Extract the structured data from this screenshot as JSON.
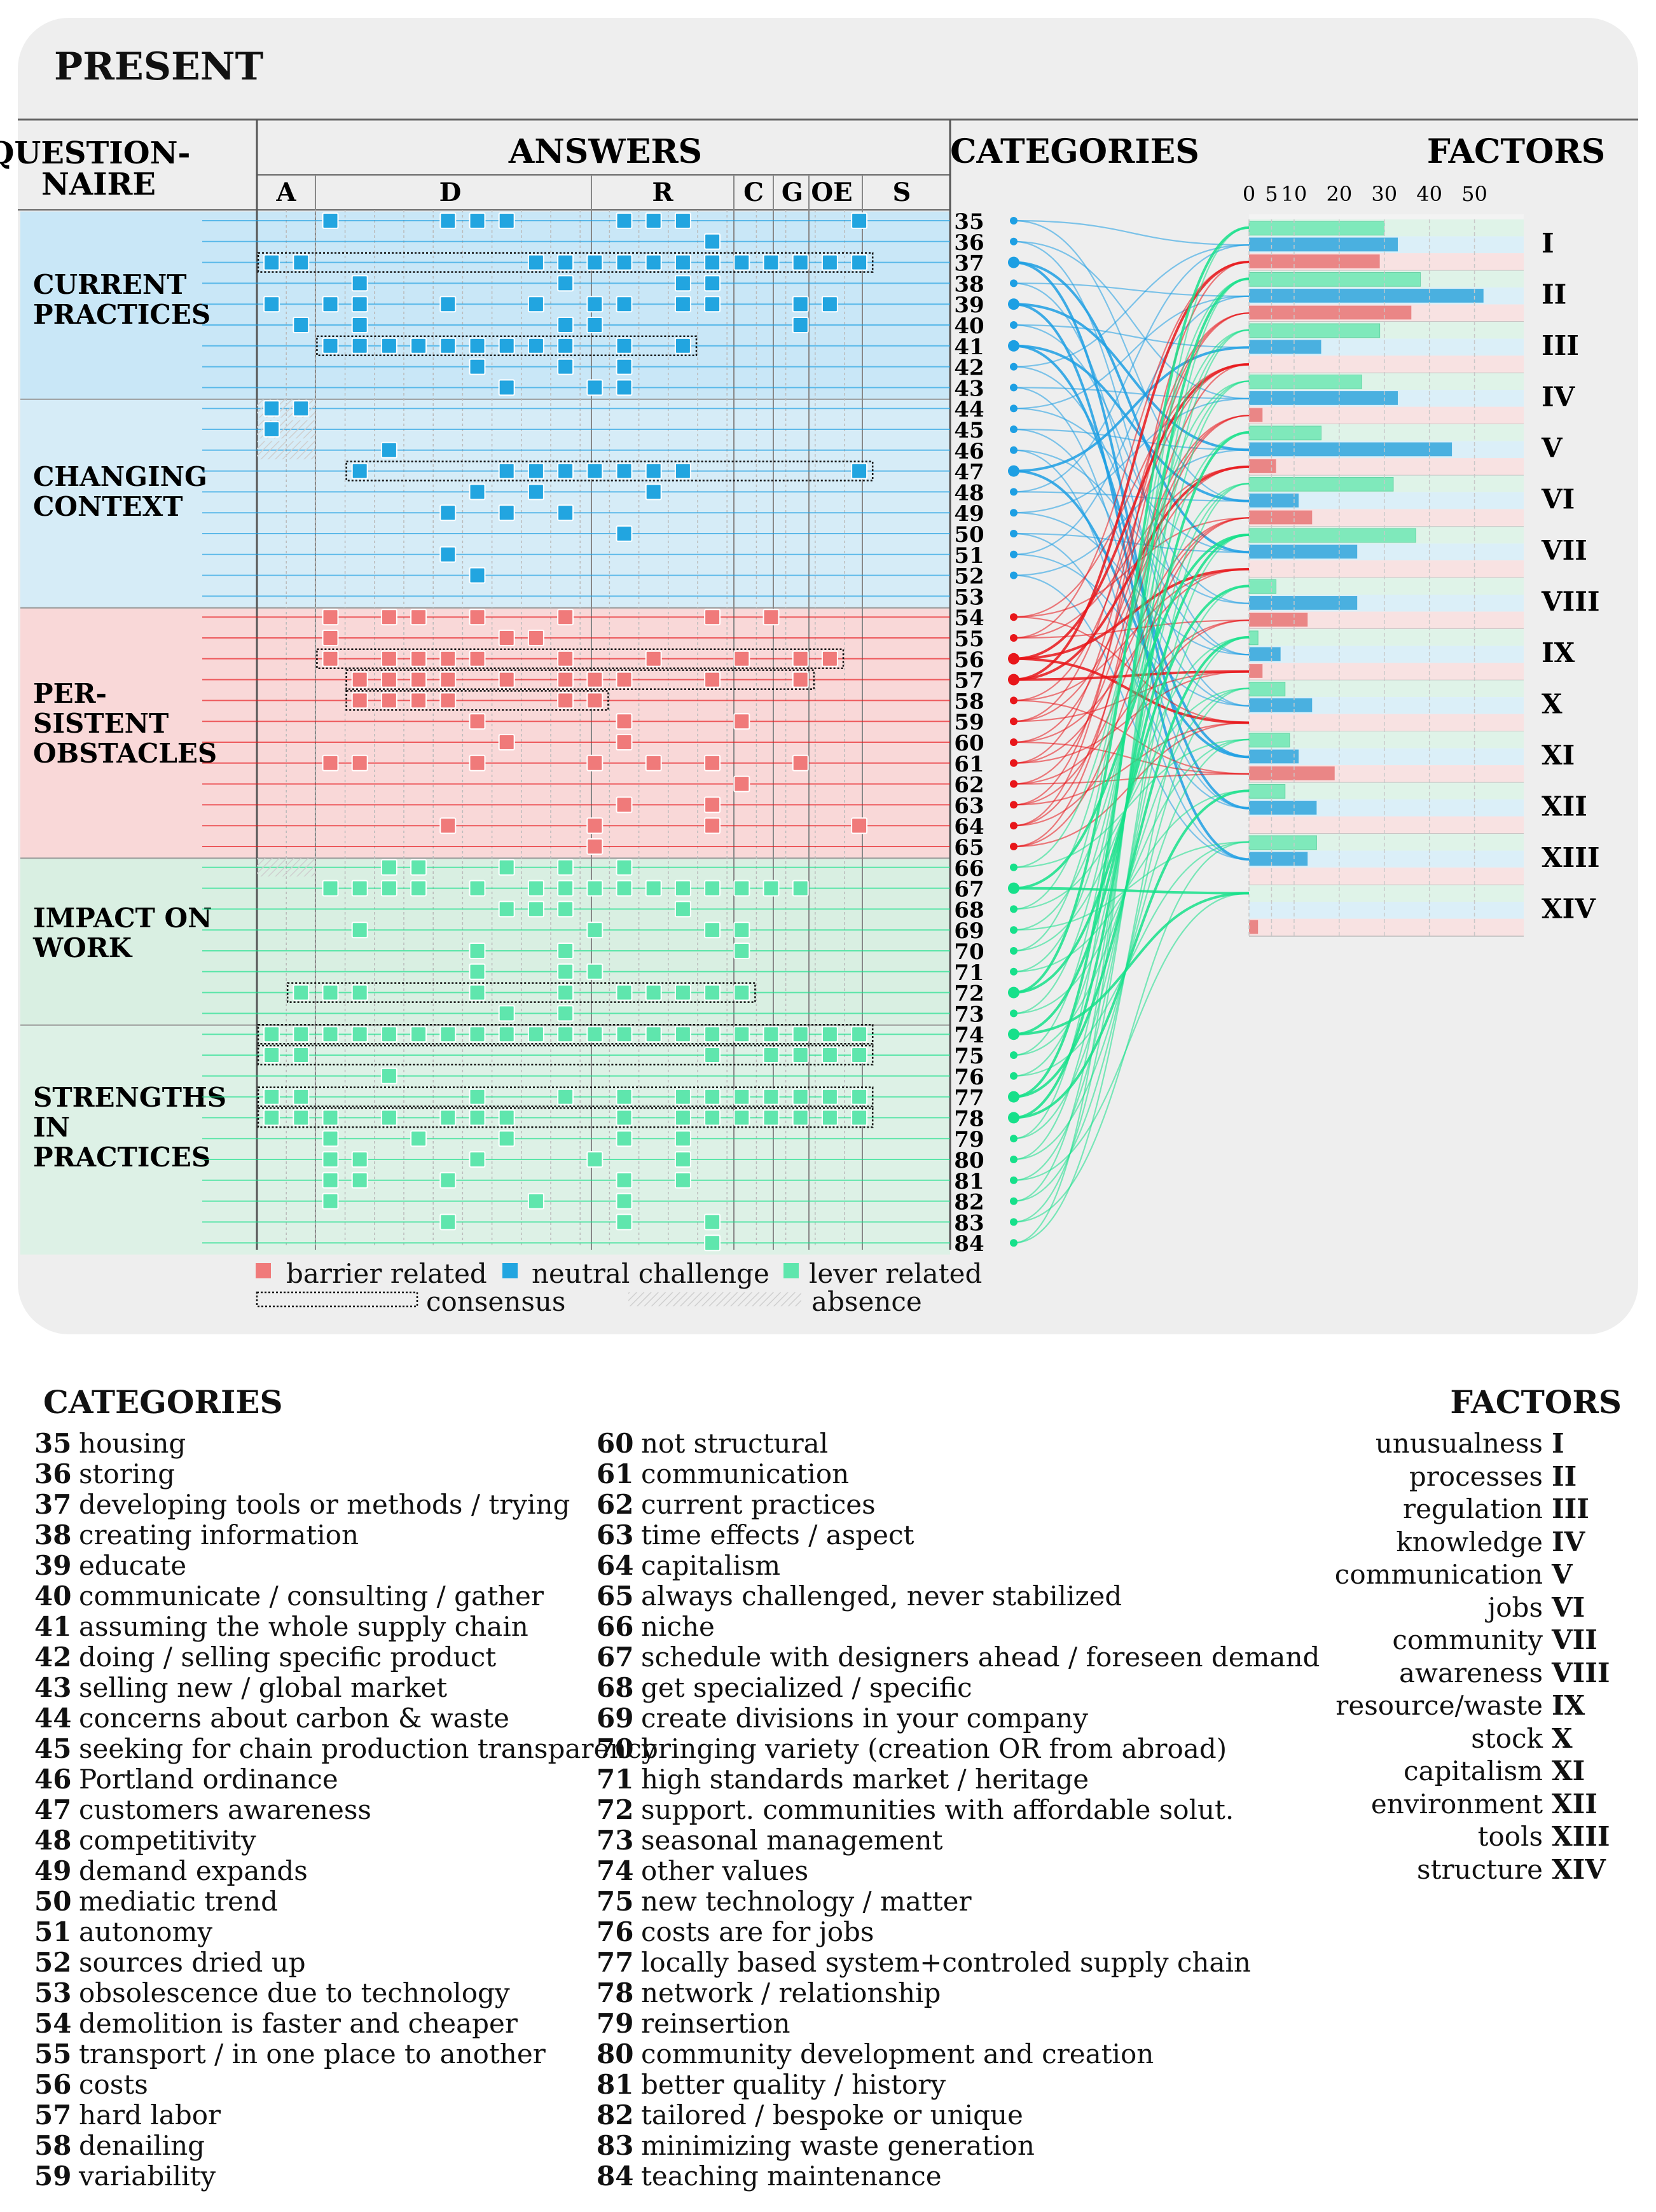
{
  "title": "PRESENT",
  "headers": {
    "questionnaire": "QUESTION-\nNAIRE",
    "answers": "ANSWERS",
    "categories": "CATEGORIES",
    "factors": "FACTORS"
  },
  "answer_groups": [
    "A",
    "D",
    "R",
    "C",
    "G",
    "OE",
    "S"
  ],
  "sections": [
    {
      "label": "CURRENT\nPRACTICES",
      "color": "#c9e7f7"
    },
    {
      "label": "CHANGING\nCONTEXT",
      "color": "#d6ecf7"
    },
    {
      "label": "PER-\nSISTENT\nOBSTACLES",
      "color": "#f9d8d8"
    },
    {
      "label": "IMPACT ON\nWORK",
      "color": "#d9efe2"
    },
    {
      "label": "STRENGTHS\nIN\nPRACTICES",
      "color": "#ddf1e6"
    }
  ],
  "colors": {
    "barrier": "#f07a7a",
    "neutral": "#22a5e0",
    "lever": "#5fe6ad",
    "barrier_line": "#e8161a",
    "neutral_line": "#1d9fe3",
    "lever_line": "#16e08a"
  },
  "legend": {
    "barrier": "barrier related",
    "neutral": "neutral challenge",
    "lever": "lever related",
    "consensus": "consensus",
    "absence": "absence"
  },
  "chart_data": {
    "type": "matrix-with-bar",
    "title": "PRESENT",
    "answer_columns": 21,
    "rows": [
      {
        "id": 35,
        "type": "neutral",
        "cells": [
          3,
          7,
          8,
          9,
          13,
          14,
          15,
          21
        ]
      },
      {
        "id": 36,
        "type": "neutral",
        "cells": [
          16
        ]
      },
      {
        "id": 37,
        "type": "neutral",
        "cells": [
          1,
          2,
          10,
          11,
          12,
          13,
          14,
          15,
          16,
          17,
          18,
          19,
          20,
          21
        ],
        "consensus": true
      },
      {
        "id": 38,
        "type": "neutral",
        "cells": [
          4,
          11,
          15,
          16
        ]
      },
      {
        "id": 39,
        "type": "neutral",
        "cells": [
          1,
          3,
          4,
          7,
          10,
          12,
          13,
          15,
          16,
          19,
          20
        ]
      },
      {
        "id": 40,
        "type": "neutral",
        "cells": [
          2,
          4,
          11,
          12,
          19
        ]
      },
      {
        "id": 41,
        "type": "neutral",
        "cells": [
          3,
          4,
          5,
          6,
          7,
          8,
          9,
          10,
          11,
          13,
          15
        ],
        "consensus": true
      },
      {
        "id": 42,
        "type": "neutral",
        "cells": [
          8,
          11,
          13
        ]
      },
      {
        "id": 43,
        "type": "neutral",
        "cells": [
          9,
          12,
          13
        ]
      },
      {
        "id": 44,
        "type": "neutral",
        "cells": [
          1,
          2
        ],
        "absence": true
      },
      {
        "id": 45,
        "type": "neutral",
        "cells": [
          1
        ],
        "absence": true
      },
      {
        "id": 46,
        "type": "neutral",
        "cells": [
          5
        ],
        "absence": true
      },
      {
        "id": 47,
        "type": "neutral",
        "cells": [
          4,
          9,
          10,
          11,
          12,
          13,
          14,
          15,
          21
        ],
        "consensus": true
      },
      {
        "id": 48,
        "type": "neutral",
        "cells": [
          8,
          10,
          14
        ]
      },
      {
        "id": 49,
        "type": "neutral",
        "cells": [
          7,
          9,
          11
        ]
      },
      {
        "id": 50,
        "type": "neutral",
        "cells": [
          13
        ]
      },
      {
        "id": 51,
        "type": "neutral",
        "cells": [
          7
        ]
      },
      {
        "id": 52,
        "type": "neutral",
        "cells": [
          8
        ]
      },
      {
        "id": 53,
        "type": "neutral",
        "cells": []
      },
      {
        "id": 54,
        "type": "barrier",
        "cells": [
          3,
          5,
          6,
          8,
          11,
          16,
          18
        ]
      },
      {
        "id": 55,
        "type": "barrier",
        "cells": [
          3,
          9,
          10
        ]
      },
      {
        "id": 56,
        "type": "barrier",
        "cells": [
          3,
          5,
          6,
          7,
          8,
          11,
          14,
          17,
          19,
          20
        ],
        "consensus": true
      },
      {
        "id": 57,
        "type": "barrier",
        "cells": [
          4,
          5,
          6,
          7,
          9,
          11,
          12,
          13,
          16,
          19
        ],
        "consensus": true
      },
      {
        "id": 58,
        "type": "barrier",
        "cells": [
          4,
          5,
          6,
          7,
          11,
          12
        ],
        "consensus": true
      },
      {
        "id": 59,
        "type": "barrier",
        "cells": [
          8,
          13,
          17
        ]
      },
      {
        "id": 60,
        "type": "barrier",
        "cells": [
          9,
          13
        ]
      },
      {
        "id": 61,
        "type": "barrier",
        "cells": [
          3,
          4,
          8,
          12,
          14,
          16,
          19
        ]
      },
      {
        "id": 62,
        "type": "barrier",
        "cells": [
          17
        ]
      },
      {
        "id": 63,
        "type": "barrier",
        "cells": [
          13,
          16
        ]
      },
      {
        "id": 64,
        "type": "barrier",
        "cells": [
          7,
          12,
          16,
          21
        ]
      },
      {
        "id": 65,
        "type": "barrier",
        "cells": [
          12
        ]
      },
      {
        "id": 66,
        "type": "lever",
        "cells": [
          5,
          6,
          9,
          11,
          13
        ],
        "absence": true
      },
      {
        "id": 67,
        "type": "lever",
        "cells": [
          3,
          4,
          5,
          6,
          8,
          10,
          11,
          12,
          13,
          14,
          15,
          16,
          17,
          18,
          19
        ]
      },
      {
        "id": 68,
        "type": "lever",
        "cells": [
          9,
          10,
          11,
          15
        ]
      },
      {
        "id": 69,
        "type": "lever",
        "cells": [
          4,
          12,
          16,
          17
        ]
      },
      {
        "id": 70,
        "type": "lever",
        "cells": [
          8,
          11,
          17
        ]
      },
      {
        "id": 71,
        "type": "lever",
        "cells": [
          8,
          11,
          12
        ]
      },
      {
        "id": 72,
        "type": "lever",
        "cells": [
          2,
          3,
          4,
          8,
          11,
          13,
          14,
          15,
          16,
          17
        ],
        "consensus": true
      },
      {
        "id": 73,
        "type": "lever",
        "cells": [
          9,
          11
        ]
      },
      {
        "id": 74,
        "type": "lever",
        "cells": [
          1,
          2,
          3,
          4,
          5,
          6,
          7,
          8,
          9,
          10,
          11,
          12,
          13,
          14,
          15,
          16,
          17,
          18,
          19,
          20,
          21
        ],
        "consensus": true
      },
      {
        "id": 75,
        "type": "lever",
        "cells": [
          1,
          2,
          16,
          18,
          19,
          20,
          21
        ],
        "consensus": true
      },
      {
        "id": 76,
        "type": "lever",
        "cells": [
          5
        ]
      },
      {
        "id": 77,
        "type": "lever",
        "cells": [
          1,
          2,
          8,
          11,
          13,
          15,
          16,
          17,
          18,
          19,
          20,
          21
        ],
        "consensus": true
      },
      {
        "id": 78,
        "type": "lever",
        "cells": [
          1,
          2,
          3,
          5,
          7,
          8,
          9,
          13,
          15,
          16,
          17,
          18,
          19,
          20,
          21
        ],
        "consensus": true
      },
      {
        "id": 79,
        "type": "lever",
        "cells": [
          3,
          6,
          9,
          13,
          15
        ]
      },
      {
        "id": 80,
        "type": "lever",
        "cells": [
          3,
          4,
          8,
          12,
          15
        ]
      },
      {
        "id": 81,
        "type": "lever",
        "cells": [
          3,
          4,
          7,
          13,
          15
        ]
      },
      {
        "id": 82,
        "type": "lever",
        "cells": [
          3,
          10,
          13
        ]
      },
      {
        "id": 83,
        "type": "lever",
        "cells": [
          7,
          13,
          16
        ]
      },
      {
        "id": 84,
        "type": "lever",
        "cells": [
          16
        ]
      }
    ],
    "factor_axis": {
      "ticks": [
        0,
        5,
        10,
        20,
        30,
        40,
        50
      ],
      "range": [
        0,
        55
      ]
    },
    "factors": [
      {
        "id": "I",
        "lever": 30,
        "neutral": 33,
        "barrier": 29
      },
      {
        "id": "II",
        "lever": 38,
        "neutral": 52,
        "barrier": 36
      },
      {
        "id": "III",
        "lever": 29,
        "neutral": 16,
        "barrier": 0
      },
      {
        "id": "IV",
        "lever": 25,
        "neutral": 33,
        "barrier": 3
      },
      {
        "id": "V",
        "lever": 16,
        "neutral": 45,
        "barrier": 6
      },
      {
        "id": "VI",
        "lever": 32,
        "neutral": 11,
        "barrier": 14
      },
      {
        "id": "VII",
        "lever": 37,
        "neutral": 24,
        "barrier": 0
      },
      {
        "id": "VIII",
        "lever": 6,
        "neutral": 24,
        "barrier": 13
      },
      {
        "id": "IX",
        "lever": 2,
        "neutral": 7,
        "barrier": 3
      },
      {
        "id": "X",
        "lever": 8,
        "neutral": 14,
        "barrier": 0
      },
      {
        "id": "XI",
        "lever": 9,
        "neutral": 11,
        "barrier": 19
      },
      {
        "id": "XII",
        "lever": 8,
        "neutral": 15,
        "barrier": 0
      },
      {
        "id": "XIII",
        "lever": 15,
        "neutral": 13,
        "barrier": 0
      },
      {
        "id": "XIV",
        "lever": 0,
        "neutral": 0,
        "barrier": 2
      }
    ]
  },
  "categories_title": "CATEGORIES",
  "categories": [
    {
      "n": "35",
      "label": "housing"
    },
    {
      "n": "36",
      "label": "storing"
    },
    {
      "n": "37",
      "label": "developing tools or methods / trying"
    },
    {
      "n": "38",
      "label": "creating information"
    },
    {
      "n": "39",
      "label": "educate"
    },
    {
      "n": "40",
      "label": "communicate / consulting / gather"
    },
    {
      "n": "41",
      "label": "assuming the whole supply chain"
    },
    {
      "n": "42",
      "label": "doing / selling specific product"
    },
    {
      "n": "43",
      "label": "selling new / global market"
    },
    {
      "n": "44",
      "label": "concerns about carbon & waste"
    },
    {
      "n": "45",
      "label": "seeking for chain production transparency"
    },
    {
      "n": "46",
      "label": "Portland ordinance"
    },
    {
      "n": "47",
      "label": "customers awareness"
    },
    {
      "n": "48",
      "label": "competitivity"
    },
    {
      "n": "49",
      "label": "demand expands"
    },
    {
      "n": "50",
      "label": "mediatic trend"
    },
    {
      "n": "51",
      "label": "autonomy"
    },
    {
      "n": "52",
      "label": "sources dried up"
    },
    {
      "n": "53",
      "label": "obsolescence due to technology"
    },
    {
      "n": "54",
      "label": "demolition is faster and cheaper"
    },
    {
      "n": "55",
      "label": "transport / in one place to another"
    },
    {
      "n": "56",
      "label": "costs"
    },
    {
      "n": "57",
      "label": "hard labor"
    },
    {
      "n": "58",
      "label": "denailing"
    },
    {
      "n": "59",
      "label": "variability"
    },
    {
      "n": "60",
      "label": "not structural"
    },
    {
      "n": "61",
      "label": "communication"
    },
    {
      "n": "62",
      "label": "current practices"
    },
    {
      "n": "63",
      "label": "time effects / aspect"
    },
    {
      "n": "64",
      "label": "capitalism"
    },
    {
      "n": "65",
      "label": "always challenged, never stabilized"
    },
    {
      "n": "66",
      "label": "niche"
    },
    {
      "n": "67",
      "label": "schedule with designers ahead / foreseen demand"
    },
    {
      "n": "68",
      "label": "get specialized / specific"
    },
    {
      "n": "69",
      "label": "create divisions in your company"
    },
    {
      "n": "70",
      "label": "bringing variety (creation OR from abroad)"
    },
    {
      "n": "71",
      "label": "high standards market / heritage"
    },
    {
      "n": "72",
      "label": "support. communities with affordable solut."
    },
    {
      "n": "73",
      "label": "seasonal management"
    },
    {
      "n": "74",
      "label": "other values"
    },
    {
      "n": "75",
      "label": "new technology / matter"
    },
    {
      "n": "76",
      "label": "costs are for jobs"
    },
    {
      "n": "77",
      "label": "locally based system+controled supply chain"
    },
    {
      "n": "78",
      "label": "network / relationship"
    },
    {
      "n": "79",
      "label": "reinsertion"
    },
    {
      "n": "80",
      "label": "community development and creation"
    },
    {
      "n": "81",
      "label": "better quality / history"
    },
    {
      "n": "82",
      "label": "tailored / bespoke or unique"
    },
    {
      "n": "83",
      "label": "minimizing waste generation"
    },
    {
      "n": "84",
      "label": "teaching maintenance"
    }
  ],
  "factors_title": "FACTORS",
  "factor_labels": [
    {
      "n": "I",
      "label": "unusualness"
    },
    {
      "n": "II",
      "label": "processes"
    },
    {
      "n": "III",
      "label": "regulation"
    },
    {
      "n": "IV",
      "label": "knowledge"
    },
    {
      "n": "V",
      "label": "communication"
    },
    {
      "n": "VI",
      "label": "jobs"
    },
    {
      "n": "VII",
      "label": "community"
    },
    {
      "n": "VIII",
      "label": "awareness"
    },
    {
      "n": "IX",
      "label": "resource/waste"
    },
    {
      "n": "X",
      "label": "stock"
    },
    {
      "n": "XI",
      "label": "capitalism"
    },
    {
      "n": "XII",
      "label": "environment"
    },
    {
      "n": "XIII",
      "label": "tools"
    },
    {
      "n": "XIV",
      "label": "structure"
    }
  ]
}
